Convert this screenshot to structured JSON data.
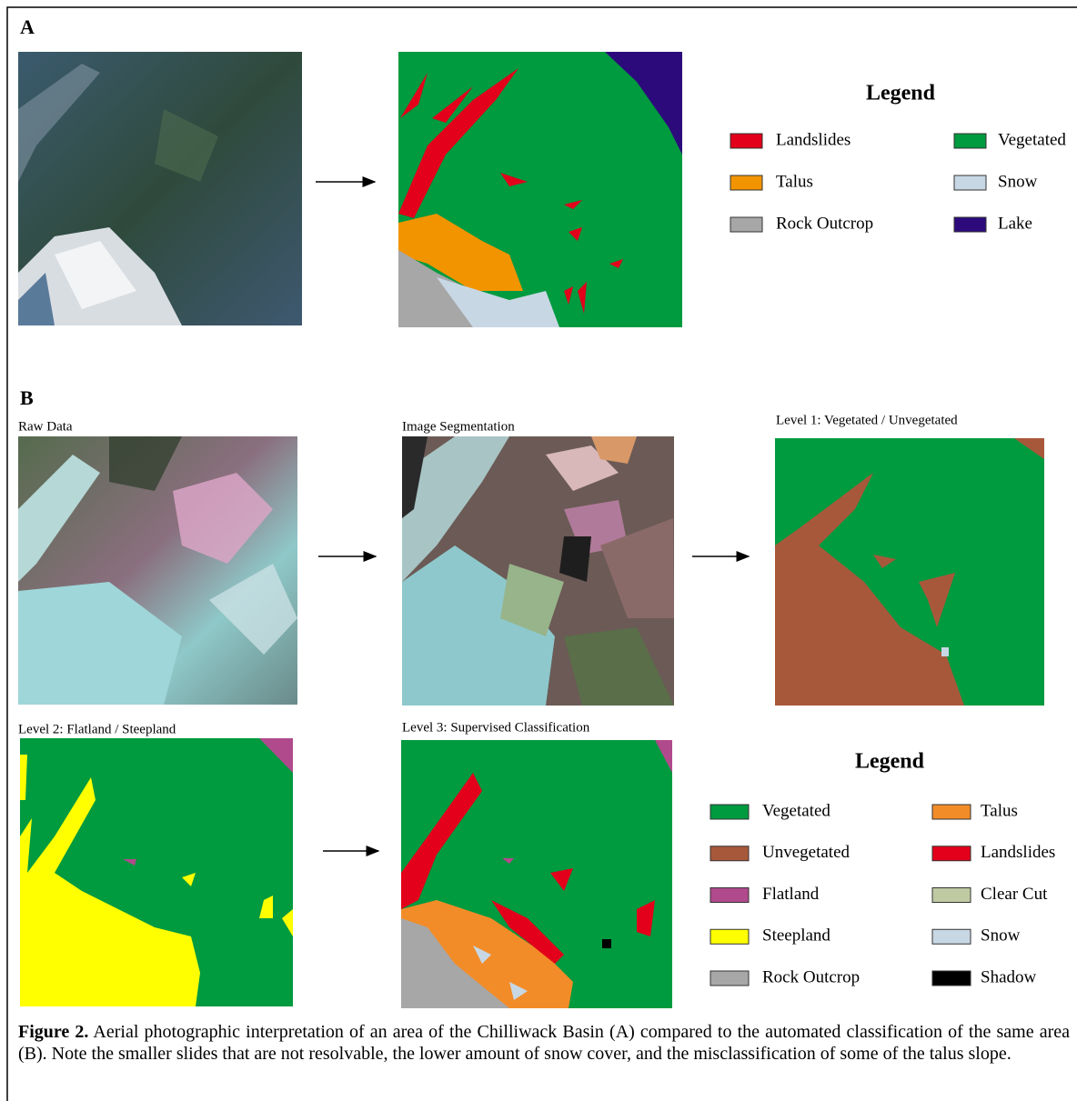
{
  "panel_a": {
    "label": "A",
    "legend": {
      "title": "Legend",
      "items": [
        {
          "label": "Landslides",
          "color": "#e2001a"
        },
        {
          "label": "Talus",
          "color": "#f29400"
        },
        {
          "label": "Rock Outcrop",
          "color": "#a7a7a7"
        },
        {
          "label": "Vegetated",
          "color": "#009a3f"
        },
        {
          "label": "Snow",
          "color": "#c8d7e4"
        },
        {
          "label": "Lake",
          "color": "#2d0a7c"
        }
      ]
    }
  },
  "panel_b": {
    "label": "B",
    "image_titles": [
      "Raw Data",
      "Image Segmentation",
      "Level 1: Vegetated / Unvegetated",
      "Level 2: Flatland / Steepland",
      "Level 3: Supervised Classification"
    ],
    "legend": {
      "title": "Legend",
      "items": [
        {
          "label": "Vegetated",
          "color": "#009a3f"
        },
        {
          "label": "Unvegetated",
          "color": "#a8583a"
        },
        {
          "label": "Flatland",
          "color": "#b04a8c"
        },
        {
          "label": "Steepland",
          "color": "#ffff00"
        },
        {
          "label": "Rock Outcrop",
          "color": "#a7a7a7"
        },
        {
          "label": "Talus",
          "color": "#f28c28"
        },
        {
          "label": "Landslides",
          "color": "#e2001a"
        },
        {
          "label": "Clear Cut",
          "color": "#bfcaa2"
        },
        {
          "label": "Snow",
          "color": "#c8d7e4"
        },
        {
          "label": "Shadow",
          "color": "#000000"
        }
      ]
    }
  },
  "caption": {
    "figure": "Figure 2.",
    "text": "Aerial photographic interpretation of an area of the Chilliwack Basin (A) compared to the automated classification of the same area (B). Note the smaller slides that are not resolvable, the lower amount of snow cover, and the misclassification of some of the talus slope."
  }
}
